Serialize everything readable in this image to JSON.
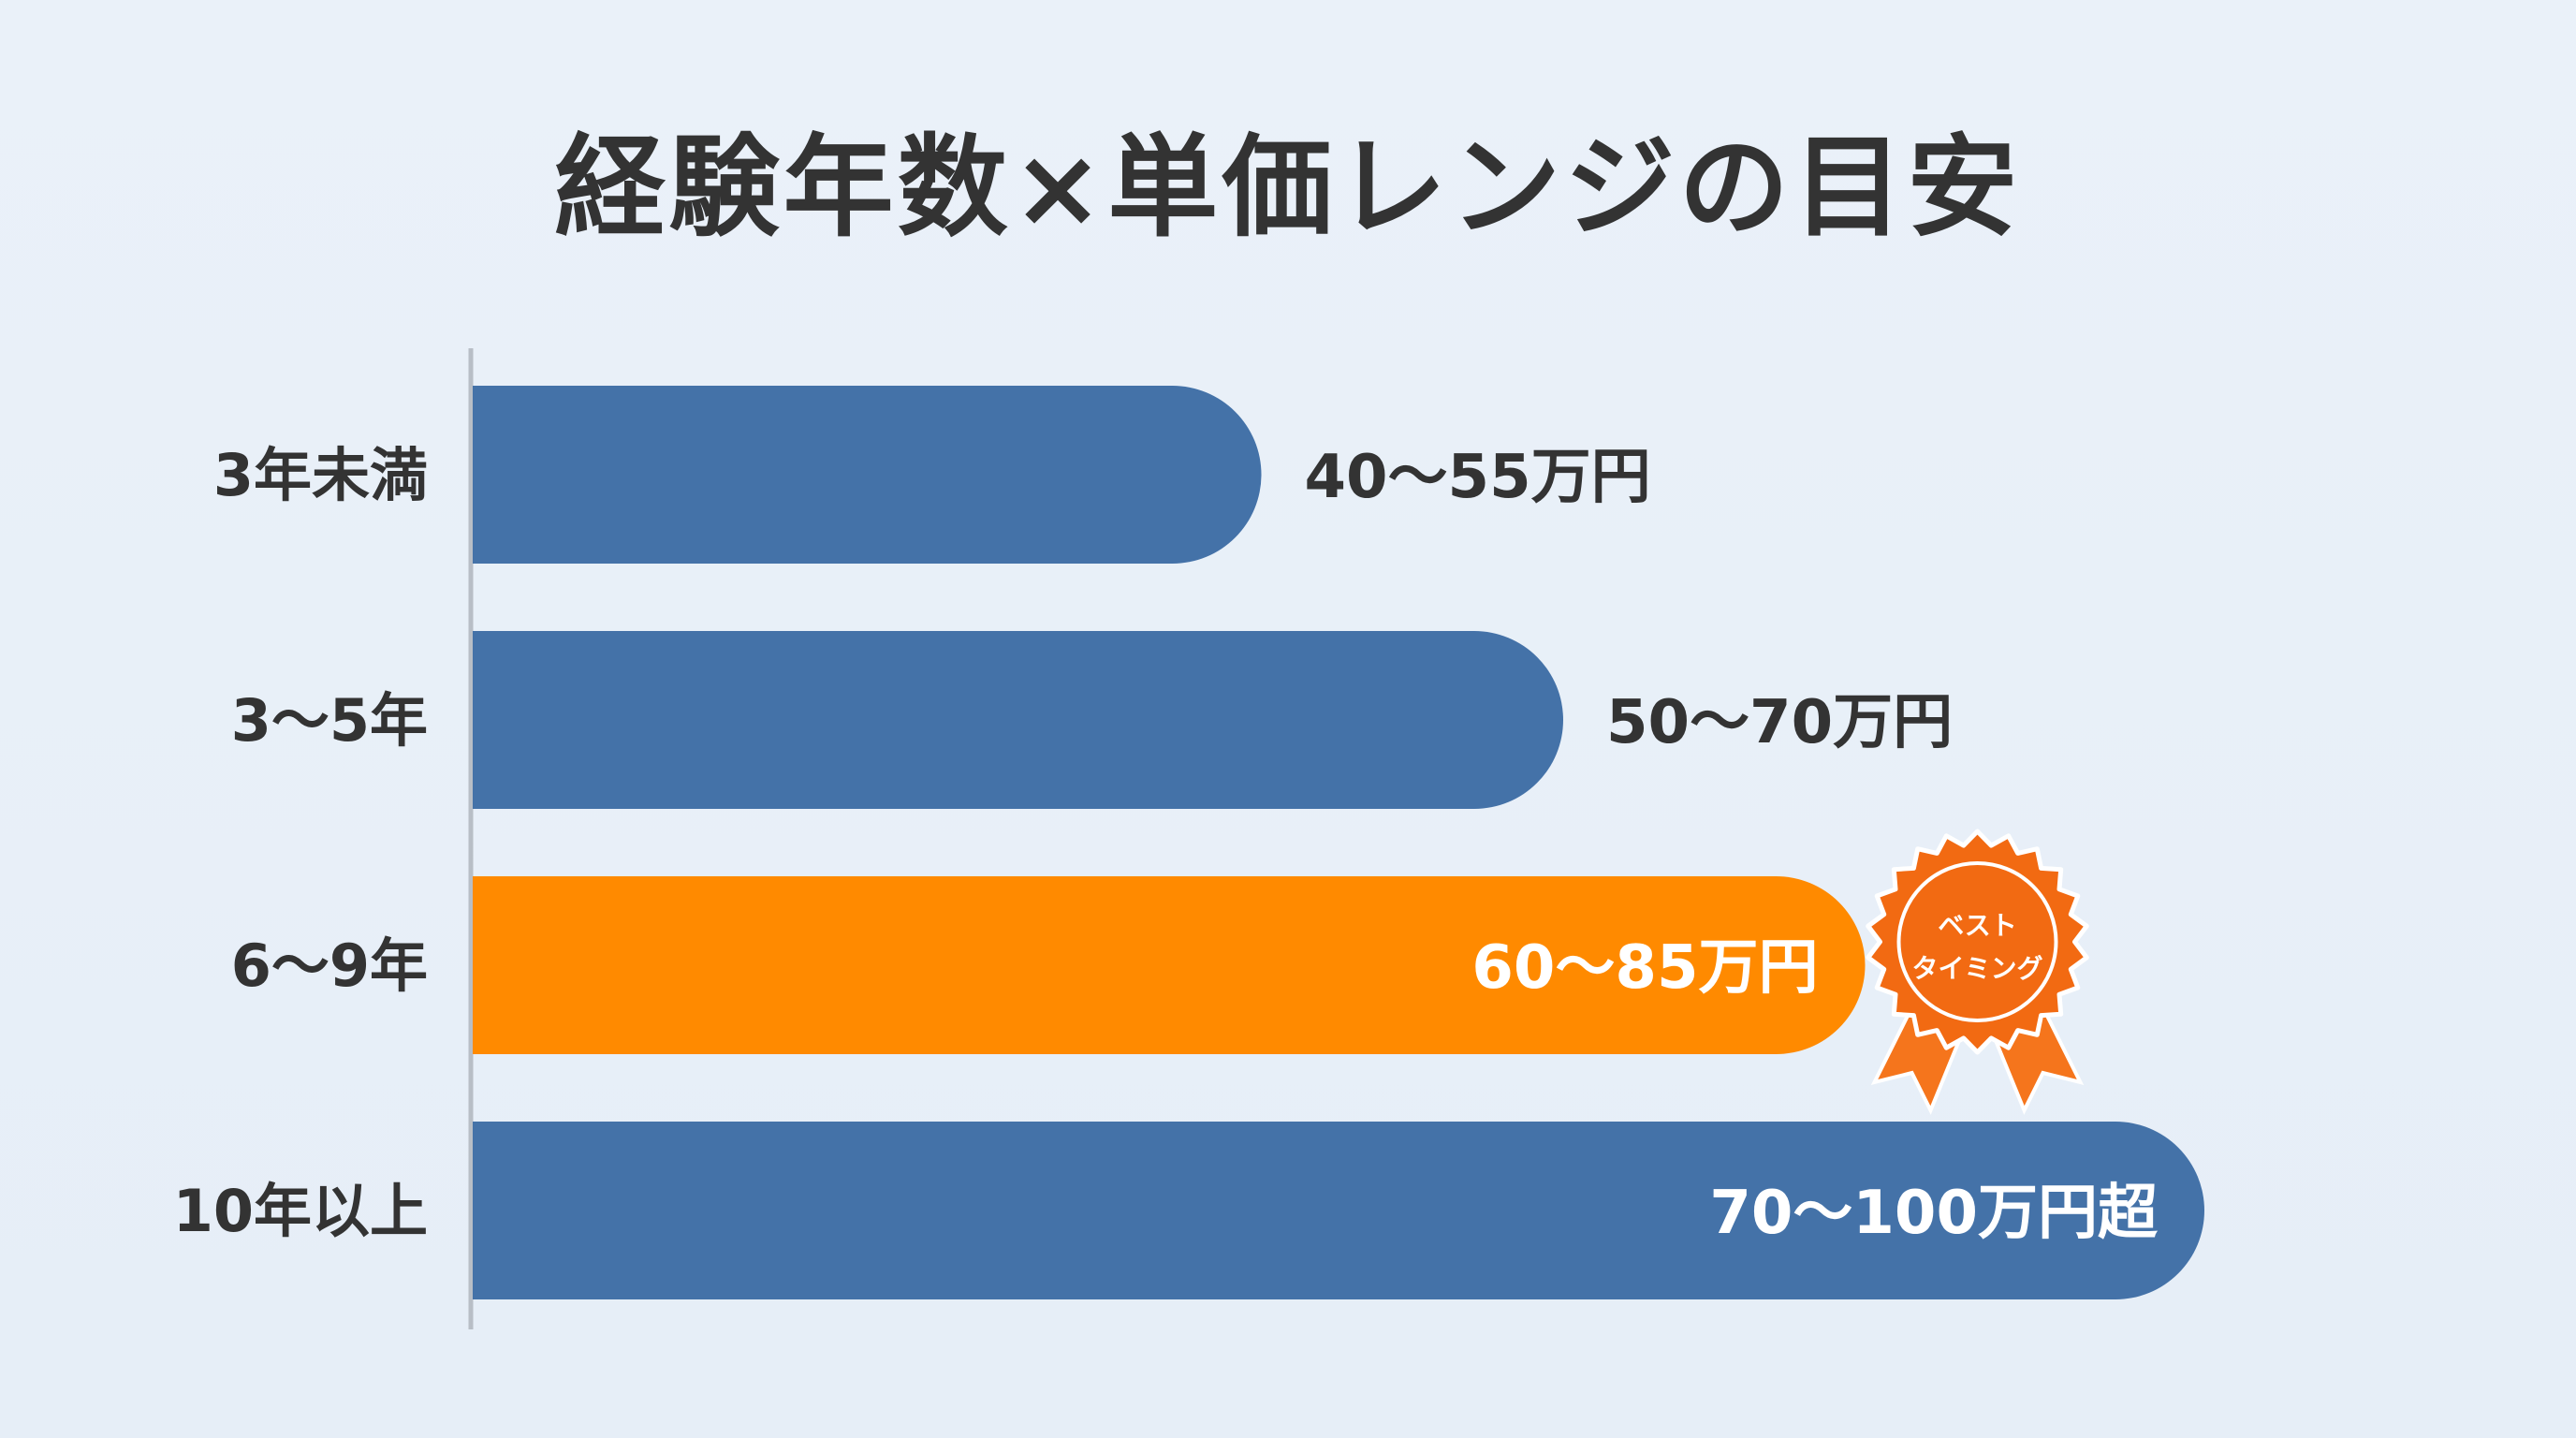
{
  "chart_data": {
    "type": "bar",
    "orientation": "horizontal",
    "title": "経験年数×単価レンジの目安",
    "categories": [
      "3年未満",
      "3〜5年",
      "6〜9年",
      "10年以上"
    ],
    "value_labels": [
      "40〜55万円",
      "50〜70万円",
      "60〜85万円",
      "70〜100万円超"
    ],
    "ranges_min": [
      40,
      50,
      60,
      70
    ],
    "ranges_max": [
      55,
      70,
      85,
      100
    ],
    "highlight_index": 2,
    "badge": {
      "line1": "ベスト",
      "line2": "タイミング"
    },
    "colors": {
      "bar": "#4472a8",
      "highlight": "#ff8a00",
      "axis": "#b8bec6",
      "text_dark": "#333333",
      "text_light": "#ffffff",
      "badge": "#f26a12",
      "badge_ribbon": "#f5751c"
    },
    "grid": false,
    "legend": "none"
  }
}
